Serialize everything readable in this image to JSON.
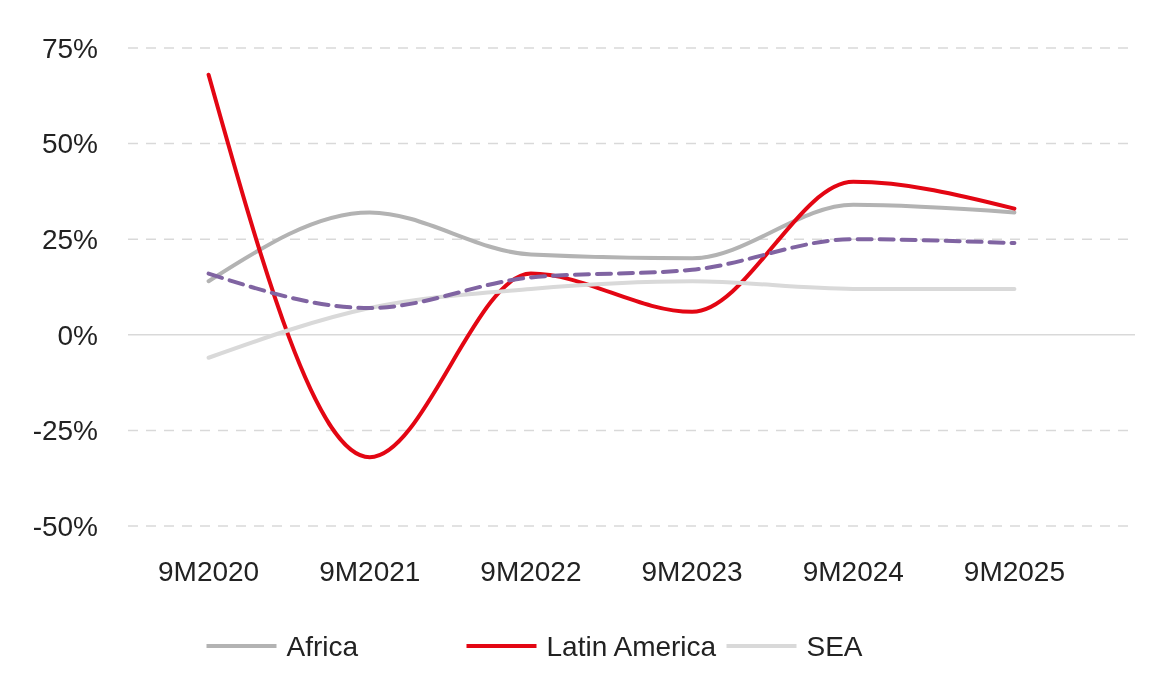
{
  "chart_data": {
    "type": "line",
    "categories": [
      "9M2020",
      "9M2021",
      "9M2022",
      "9M2023",
      "9M2024",
      "9M2025"
    ],
    "series": [
      {
        "name": "Africa",
        "color": "#b3b3b3",
        "values": [
          14,
          32,
          21,
          20,
          34,
          32
        ]
      },
      {
        "name": "Latin America",
        "color": "#e30613",
        "values": [
          68,
          -32,
          16,
          6,
          40,
          33
        ]
      },
      {
        "name": "SEA",
        "color": "#d9d9d9",
        "values": [
          -6,
          7,
          12,
          14,
          12,
          12
        ]
      },
      {
        "color": "#8064a2",
        "line_style": "dashed",
        "values": [
          16,
          7,
          15,
          17,
          25,
          24
        ]
      }
    ],
    "ylim": [
      -50,
      75
    ],
    "yticks": [
      {
        "value": -50,
        "label": "-50%"
      },
      {
        "value": -25,
        "label": "-25%"
      },
      {
        "value": 0,
        "label": "0%"
      },
      {
        "value": 25,
        "label": "25%"
      },
      {
        "value": 50,
        "label": "50%"
      },
      {
        "value": 75,
        "label": "75%"
      }
    ],
    "grid": "y",
    "legend": "bottom",
    "marker": "none",
    "line_style": "solid"
  }
}
